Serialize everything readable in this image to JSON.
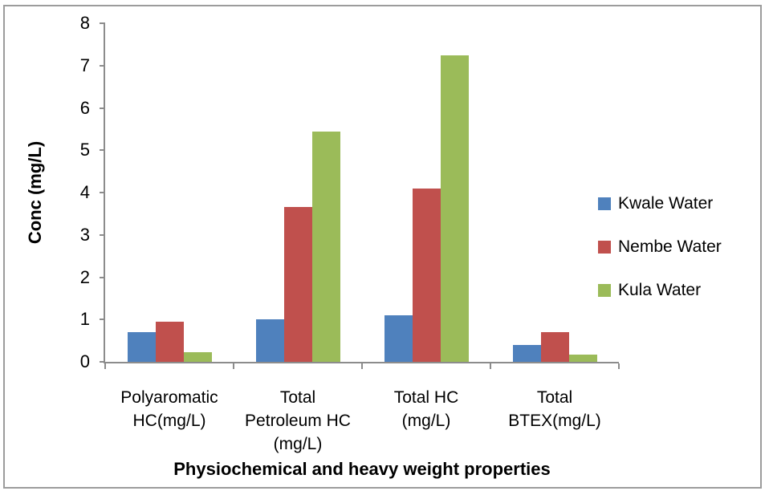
{
  "chart_data": {
    "type": "bar",
    "title": "",
    "xlabel": "Physiochemical and heavy weight properties",
    "ylabel": "Conc (mg/L)",
    "ylim": [
      0,
      8
    ],
    "ytick_step": 1,
    "yticks": [
      0,
      1,
      2,
      3,
      4,
      5,
      6,
      7,
      8
    ],
    "grid": false,
    "legend_position": "right",
    "categories": [
      "Polyaromatic HC(mg/L)",
      "Total Petroleum HC (mg/L)",
      "Total HC (mg/L)",
      "Total BTEX(mg/L)"
    ],
    "category_label_lines": [
      [
        "Polyaromatic",
        "HC(mg/L)"
      ],
      [
        "Total",
        "Petroleum HC",
        "(mg/L)"
      ],
      [
        "Total HC",
        "(mg/L)"
      ],
      [
        "Total",
        "BTEX(mg/L)"
      ]
    ],
    "series": [
      {
        "name": "Kwale Water",
        "color": "#4F81BD",
        "values": [
          0.7,
          1.0,
          1.1,
          0.4
        ]
      },
      {
        "name": "Nembe Water",
        "color": "#C0504D",
        "values": [
          0.95,
          3.65,
          4.1,
          0.7
        ]
      },
      {
        "name": "Kula Water",
        "color": "#9BBB59",
        "values": [
          0.22,
          5.45,
          7.25,
          0.18
        ]
      }
    ]
  },
  "colors": {
    "axis": "#8C8C8C",
    "frame_border": "#9C9C9C",
    "background": "#FFFFFF",
    "text": "#000000"
  }
}
